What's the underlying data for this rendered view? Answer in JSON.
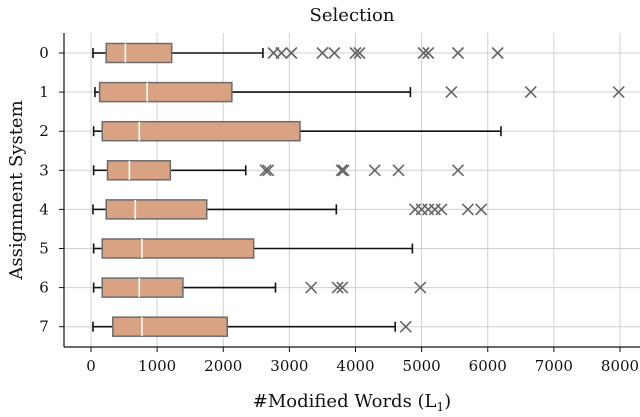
{
  "chart_data": {
    "type": "boxplot",
    "orientation": "horizontal",
    "title": "Selection",
    "xlabel": "#Modified Words (L",
    "xlabel_subscript": "1",
    "xlabel_suffix": ")",
    "ylabel": "Assignment System",
    "xlim": [
      -400,
      8200
    ],
    "x_ticks": [
      "0",
      "1000",
      "2000",
      "3000",
      "4000",
      "5000",
      "6000",
      "7000",
      "8000"
    ],
    "x_tick_values": [
      0,
      1000,
      2000,
      3000,
      4000,
      5000,
      6000,
      7000,
      8000
    ],
    "grid": true,
    "colors": {
      "box_fill": "#d9a383",
      "box_edge": "#6b6b6b",
      "median": "#ffffff",
      "whisker": "#111111",
      "flier": "#666666",
      "grid": "#d0d0d0"
    },
    "categories": [
      "0",
      "1",
      "2",
      "3",
      "4",
      "5",
      "6",
      "7"
    ],
    "boxes": [
      {
        "label": "0",
        "whisker_low": 30,
        "q1": 230,
        "median": 520,
        "q3": 1220,
        "whisker_high": 2600,
        "fliers": [
          2760,
          2880,
          3030,
          3500,
          3680,
          4000,
          4060,
          5030,
          5100,
          5550,
          6150
        ]
      },
      {
        "label": "1",
        "whisker_low": 60,
        "q1": 130,
        "median": 850,
        "q3": 2130,
        "whisker_high": 4830,
        "fliers": [
          5450,
          6650,
          7980
        ]
      },
      {
        "label": "2",
        "whisker_low": 40,
        "q1": 170,
        "median": 730,
        "q3": 3160,
        "whisker_high": 6200,
        "fliers": []
      },
      {
        "label": "3",
        "whisker_low": 40,
        "q1": 250,
        "median": 580,
        "q3": 1200,
        "whisker_high": 2340,
        "fliers": [
          2640,
          2680,
          3790,
          3820,
          4290,
          4650,
          5550
        ]
      },
      {
        "label": "4",
        "whisker_low": 30,
        "q1": 230,
        "median": 670,
        "q3": 1750,
        "whisker_high": 3710,
        "fliers": [
          4900,
          5000,
          5100,
          5200,
          5300,
          5700,
          5900
        ]
      },
      {
        "label": "5",
        "whisker_low": 40,
        "q1": 170,
        "median": 770,
        "q3": 2460,
        "whisker_high": 4860,
        "fliers": []
      },
      {
        "label": "6",
        "whisker_low": 40,
        "q1": 170,
        "median": 730,
        "q3": 1390,
        "whisker_high": 2790,
        "fliers": [
          3330,
          3730,
          3800,
          4980
        ]
      },
      {
        "label": "7",
        "whisker_low": 30,
        "q1": 330,
        "median": 770,
        "q3": 2060,
        "whisker_high": 4600,
        "fliers": [
          4760
        ]
      }
    ]
  }
}
